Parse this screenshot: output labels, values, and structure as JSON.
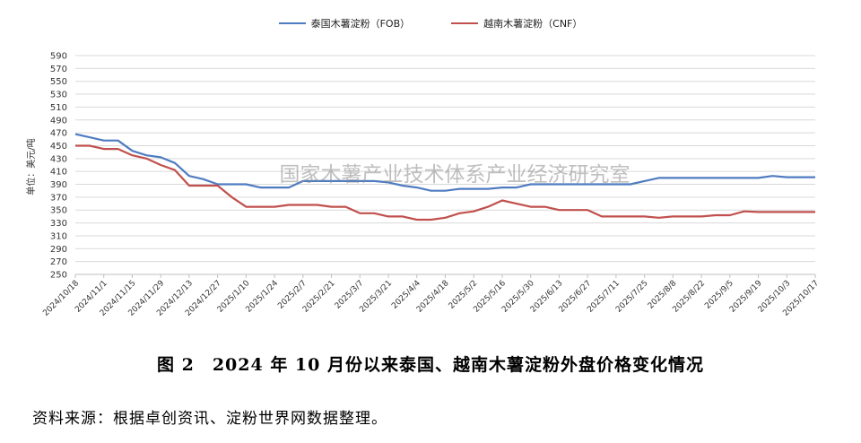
{
  "legend": {
    "thai_label": "泰国木薯淀粉（FOB）",
    "viet_label": "越南木薯淀粉（CNF）"
  },
  "watermark": "国家木薯产业技术体系产业经济研究室",
  "caption": "图 2　2024 年 10 月份以来泰国、越南木薯淀粉外盘价格变化情况",
  "source": "资料来源：根据卓创资讯、淀粉世界网数据整理。",
  "colors": {
    "thai": "#4f7cc0",
    "viet": "#c0504d",
    "grid": "#d9d9d9"
  },
  "chart_data": {
    "type": "line",
    "ylabel": "单位：美元/吨",
    "ylim": [
      250,
      590
    ],
    "yticks": [
      250,
      270,
      290,
      310,
      330,
      350,
      370,
      390,
      410,
      430,
      450,
      470,
      490,
      510,
      530,
      550,
      570,
      590
    ],
    "grid": true,
    "legend_position": "top",
    "x": [
      "2024/10/18",
      "2024/10/25",
      "2024/11/1",
      "2024/11/8",
      "2024/11/15",
      "2024/11/22",
      "2024/11/29",
      "2024/12/6",
      "2024/12/13",
      "2024/12/20",
      "2024/12/27",
      "2025/1/3",
      "2025/1/10",
      "2025/1/17",
      "2025/1/24",
      "2025/1/31",
      "2025/2/7",
      "2025/2/14",
      "2025/2/21",
      "2025/2/28",
      "2025/3/7",
      "2025/3/14",
      "2025/3/21",
      "2025/3/28",
      "2025/4/4",
      "2025/4/11",
      "2025/4/18",
      "2025/4/25",
      "2025/5/2",
      "2025/5/9",
      "2025/5/16",
      "2025/5/23",
      "2025/5/30",
      "2025/6/6",
      "2025/6/13",
      "2025/6/20",
      "2025/6/27",
      "2025/7/4",
      "2025/7/11",
      "2025/7/18",
      "2025/7/25",
      "2025/8/1",
      "2025/8/8",
      "2025/8/15",
      "2025/8/22",
      "2025/8/29",
      "2025/9/5",
      "2025/9/12",
      "2025/9/19",
      "2025/9/26",
      "2025/10/3",
      "2025/10/10",
      "2025/10/17"
    ],
    "x_tick_labels": [
      "2024/10/18",
      "2024/11/1",
      "2024/11/15",
      "2024/11/29",
      "2024/12/13",
      "2024/12/27",
      "2025/1/10",
      "2025/1/24",
      "2025/2/7",
      "2025/2/21",
      "2025/3/7",
      "2025/3/21",
      "2025/4/4",
      "2025/4/18",
      "2025/5/2",
      "2025/5/16",
      "2025/5/30",
      "2025/6/13",
      "2025/6/27",
      "2025/7/11",
      "2025/7/25",
      "2025/8/8",
      "2025/8/22",
      "2025/9/5",
      "2025/9/19",
      "2025/10/3",
      "2025/10/17"
    ],
    "series": [
      {
        "name": "泰国木薯淀粉（FOB）",
        "values": [
          468,
          463,
          458,
          458,
          442,
          435,
          432,
          423,
          403,
          398,
          390,
          390,
          390,
          385,
          385,
          385,
          395,
          395,
          395,
          395,
          395,
          395,
          393,
          388,
          385,
          380,
          380,
          383,
          383,
          383,
          385,
          385,
          390,
          390,
          390,
          390,
          390,
          390,
          390,
          390,
          395,
          400,
          400,
          400,
          400,
          400,
          400,
          400,
          400,
          403,
          401,
          401,
          401
        ]
      },
      {
        "name": "越南木薯淀粉（CNF）",
        "values": [
          450,
          450,
          445,
          445,
          435,
          430,
          420,
          412,
          388,
          388,
          388,
          370,
          355,
          355,
          355,
          358,
          358,
          358,
          355,
          355,
          345,
          345,
          340,
          340,
          335,
          335,
          338,
          345,
          348,
          355,
          365,
          360,
          355,
          355,
          350,
          350,
          350,
          340,
          340,
          340,
          340,
          338,
          340,
          340,
          340,
          342,
          342,
          348,
          347,
          347,
          347,
          347,
          347
        ]
      }
    ]
  }
}
